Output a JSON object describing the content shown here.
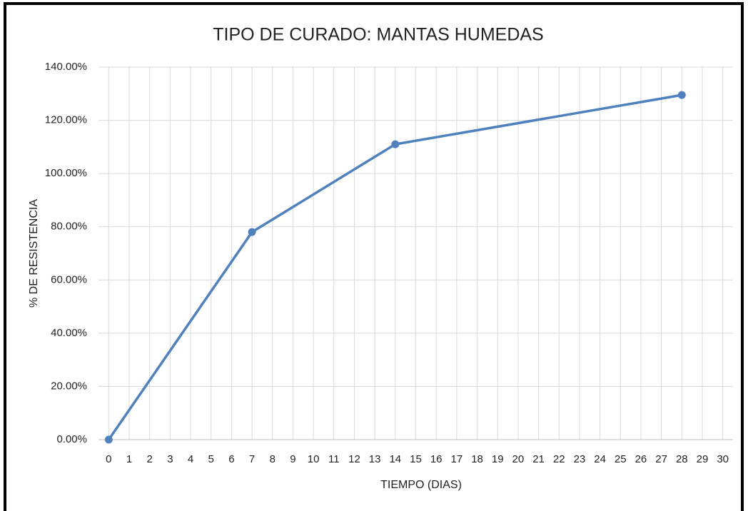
{
  "chart_data": {
    "type": "line",
    "title": "TIPO DE CURADO: MANTAS HUMEDAS",
    "xlabel": "TIEMPO (DIAS)",
    "ylabel": "% DE RESISTENCIA",
    "x": [
      0,
      7,
      14,
      28
    ],
    "series": [
      {
        "name": "% DE RESISTENCIA",
        "color": "#4f81bd",
        "values": [
          0,
          78,
          111,
          129.5
        ]
      }
    ],
    "xlim": [
      -0.5,
      30.5
    ],
    "xticks": [
      0,
      1,
      2,
      3,
      4,
      5,
      6,
      7,
      8,
      9,
      10,
      11,
      12,
      13,
      14,
      15,
      16,
      17,
      18,
      19,
      20,
      21,
      22,
      23,
      24,
      25,
      26,
      27,
      28,
      29,
      30
    ],
    "ylim": [
      0,
      140
    ],
    "yticks": [
      {
        "value": 0,
        "label": "0.00%"
      },
      {
        "value": 20,
        "label": "20.00%"
      },
      {
        "value": 40,
        "label": "40.00%"
      },
      {
        "value": 60,
        "label": "60.00%"
      },
      {
        "value": 80,
        "label": "80.00%"
      },
      {
        "value": 100,
        "label": "100.00%"
      },
      {
        "value": 120,
        "label": "120.00%"
      },
      {
        "value": 140,
        "label": "140.00%"
      }
    ],
    "grid": true
  }
}
